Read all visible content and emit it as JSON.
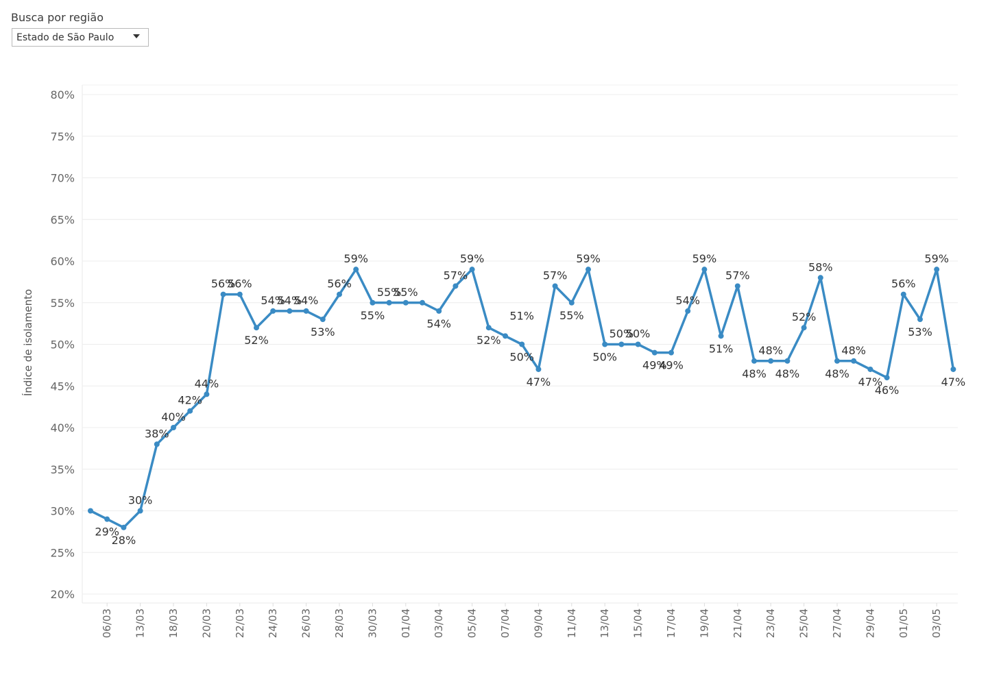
{
  "filter": {
    "title": "Busca por região",
    "selected": "Estado de São Paulo"
  },
  "chart_data": {
    "type": "line",
    "ylabel": "Índice de isolamento",
    "xlabel": "",
    "ylim": [
      20,
      80
    ],
    "y_ticks": [
      "20%",
      "25%",
      "30%",
      "35%",
      "40%",
      "45%",
      "50%",
      "55%",
      "60%",
      "65%",
      "70%",
      "75%",
      "80%"
    ],
    "x_tick_labels": [
      "06/03",
      "13/03",
      "18/03",
      "20/03",
      "22/03",
      "24/03",
      "26/03",
      "28/03",
      "30/03",
      "01/04",
      "03/04",
      "05/04",
      "07/04",
      "09/04",
      "11/04",
      "13/04",
      "15/04",
      "17/04",
      "19/04",
      "21/04",
      "23/04",
      "25/04",
      "27/04",
      "29/04",
      "01/05",
      "03/05"
    ],
    "grid": true,
    "series": [
      {
        "color": "#3a8bc4",
        "values": [
          30,
          29,
          28,
          30,
          38,
          40,
          42,
          44,
          56,
          56,
          52,
          54,
          54,
          54,
          53,
          56,
          59,
          55,
          55,
          55,
          55,
          54,
          57,
          59,
          52,
          51,
          50,
          47,
          57,
          55,
          59,
          50,
          50,
          50,
          49,
          49,
          54,
          59,
          51,
          57,
          48,
          48,
          48,
          52,
          58,
          48,
          48,
          47,
          46,
          56,
          53,
          59,
          47
        ],
        "labels": [
          "",
          "29%",
          "28%",
          "30%",
          "38%",
          "40%",
          "42%",
          "44%",
          "56%",
          "56%",
          "52%",
          "54%",
          "54%",
          "54%",
          "53%",
          "56%",
          "59%",
          "55%",
          "55%",
          "55%",
          "",
          "54%",
          "57%",
          "59%",
          "52%",
          "",
          "50%",
          "47%",
          "57%",
          "55%",
          "59%",
          "50%",
          "50%",
          "50%",
          "49%",
          "49%",
          "54%",
          "59%",
          "51%",
          "57%",
          "48%",
          "48%",
          "48%",
          "52%",
          "58%",
          "48%",
          "48%",
          "47%",
          "46%",
          "56%",
          "53%",
          "59%",
          "47%"
        ],
        "extra_labels": [
          "51%"
        ]
      }
    ]
  }
}
